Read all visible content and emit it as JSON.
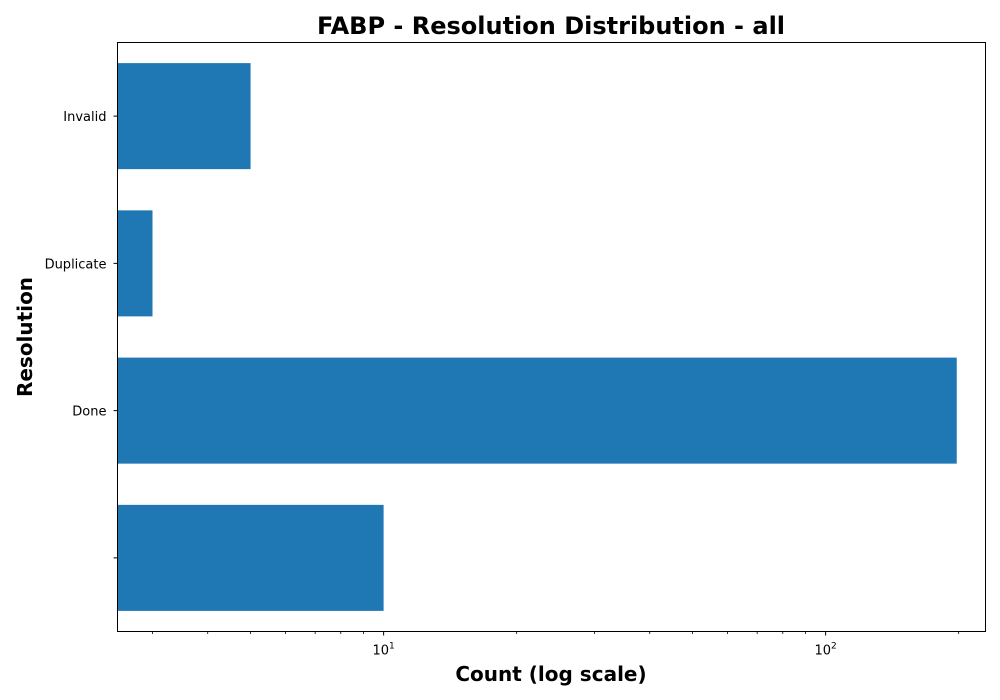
{
  "chart_data": {
    "type": "bar",
    "orientation": "horizontal",
    "title": "FABP - Resolution Distribution - all",
    "xlabel": "Count (log scale)",
    "ylabel": "Resolution",
    "x_scale": "log",
    "xlim": [
      2.5,
      230
    ],
    "categories": [
      "",
      "Done",
      "Duplicate",
      "Invalid"
    ],
    "values": [
      10,
      198,
      3,
      5
    ],
    "bar_color": "#1f77b4",
    "x_ticks": [
      {
        "value": 10,
        "base": "10",
        "exp": "1"
      },
      {
        "value": 100,
        "base": "10",
        "exp": "2"
      }
    ],
    "grid": false,
    "legend": "none"
  }
}
